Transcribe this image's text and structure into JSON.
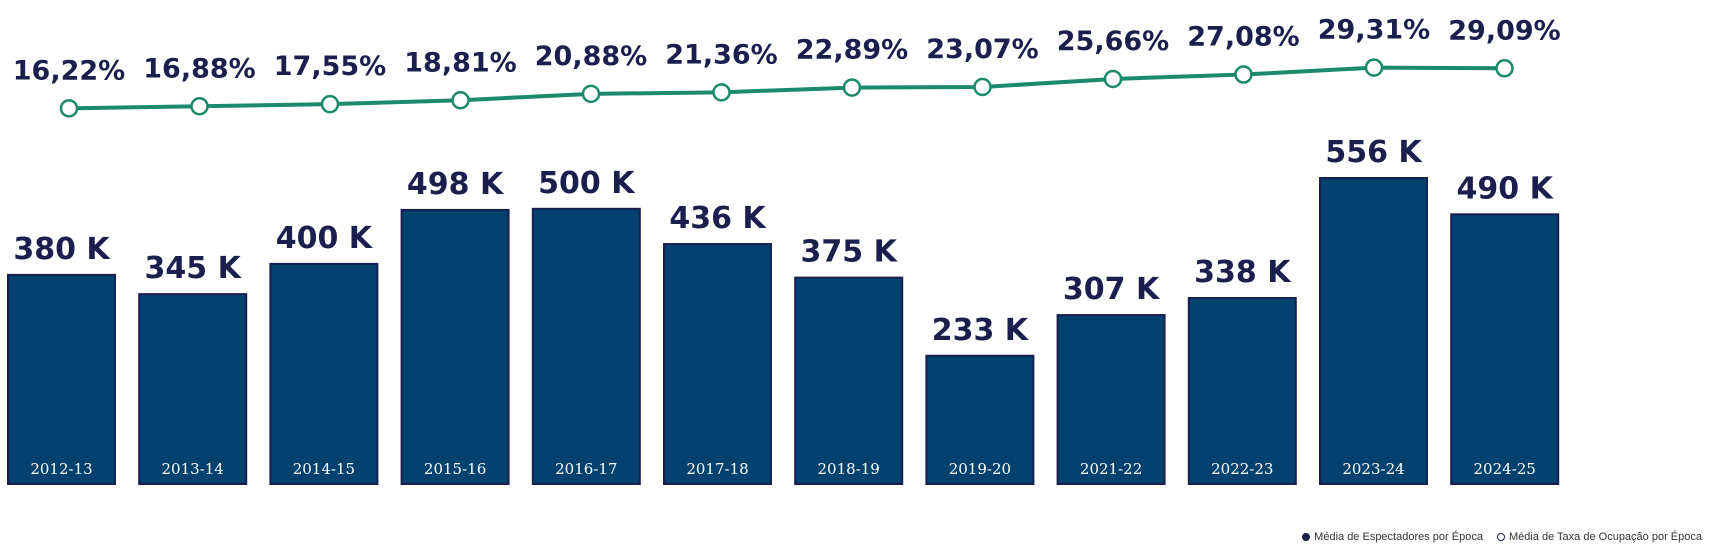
{
  "chart_data": {
    "type": "bar",
    "categories": [
      "2012-13",
      "2013-14",
      "2014-15",
      "2015-16",
      "2016-17",
      "2017-18",
      "2018-19",
      "2019-20",
      "2021-22",
      "2022-23",
      "2023-24",
      "2024-25"
    ],
    "series": [
      {
        "name": "Média de Espectadores por Época",
        "type": "bar",
        "values": [
          380,
          345,
          400,
          498,
          500,
          436,
          375,
          233,
          307,
          338,
          556,
          490
        ],
        "labels": [
          "380 K",
          "345 K",
          "400 K",
          "498 K",
          "500 K",
          "436 K",
          "375 K",
          "233 K",
          "307 K",
          "338 K",
          "556 K",
          "490 K"
        ],
        "unit": "K"
      },
      {
        "name": "Média de Taxa de Ocupação por Época",
        "type": "line",
        "values": [
          16.22,
          16.88,
          17.55,
          18.81,
          20.88,
          21.36,
          22.89,
          23.07,
          25.66,
          27.08,
          29.31,
          29.09
        ],
        "labels": [
          "16,22%",
          "16,88%",
          "17,55%",
          "18,81%",
          "20,88%",
          "21,36%",
          "22,89%",
          "23,07%",
          "25,66%",
          "27,08%",
          "29,31%",
          "29,09%"
        ],
        "unit": "%"
      }
    ],
    "ylim_bars": [
      0,
      556
    ],
    "ylim_line": [
      16,
      29.5
    ],
    "legend_position": "bottom-right",
    "colors": {
      "bar": "#00416e",
      "bar_border": "#1a1f4d",
      "line": "#1b8a6b",
      "text": "#1a1f4d"
    }
  }
}
